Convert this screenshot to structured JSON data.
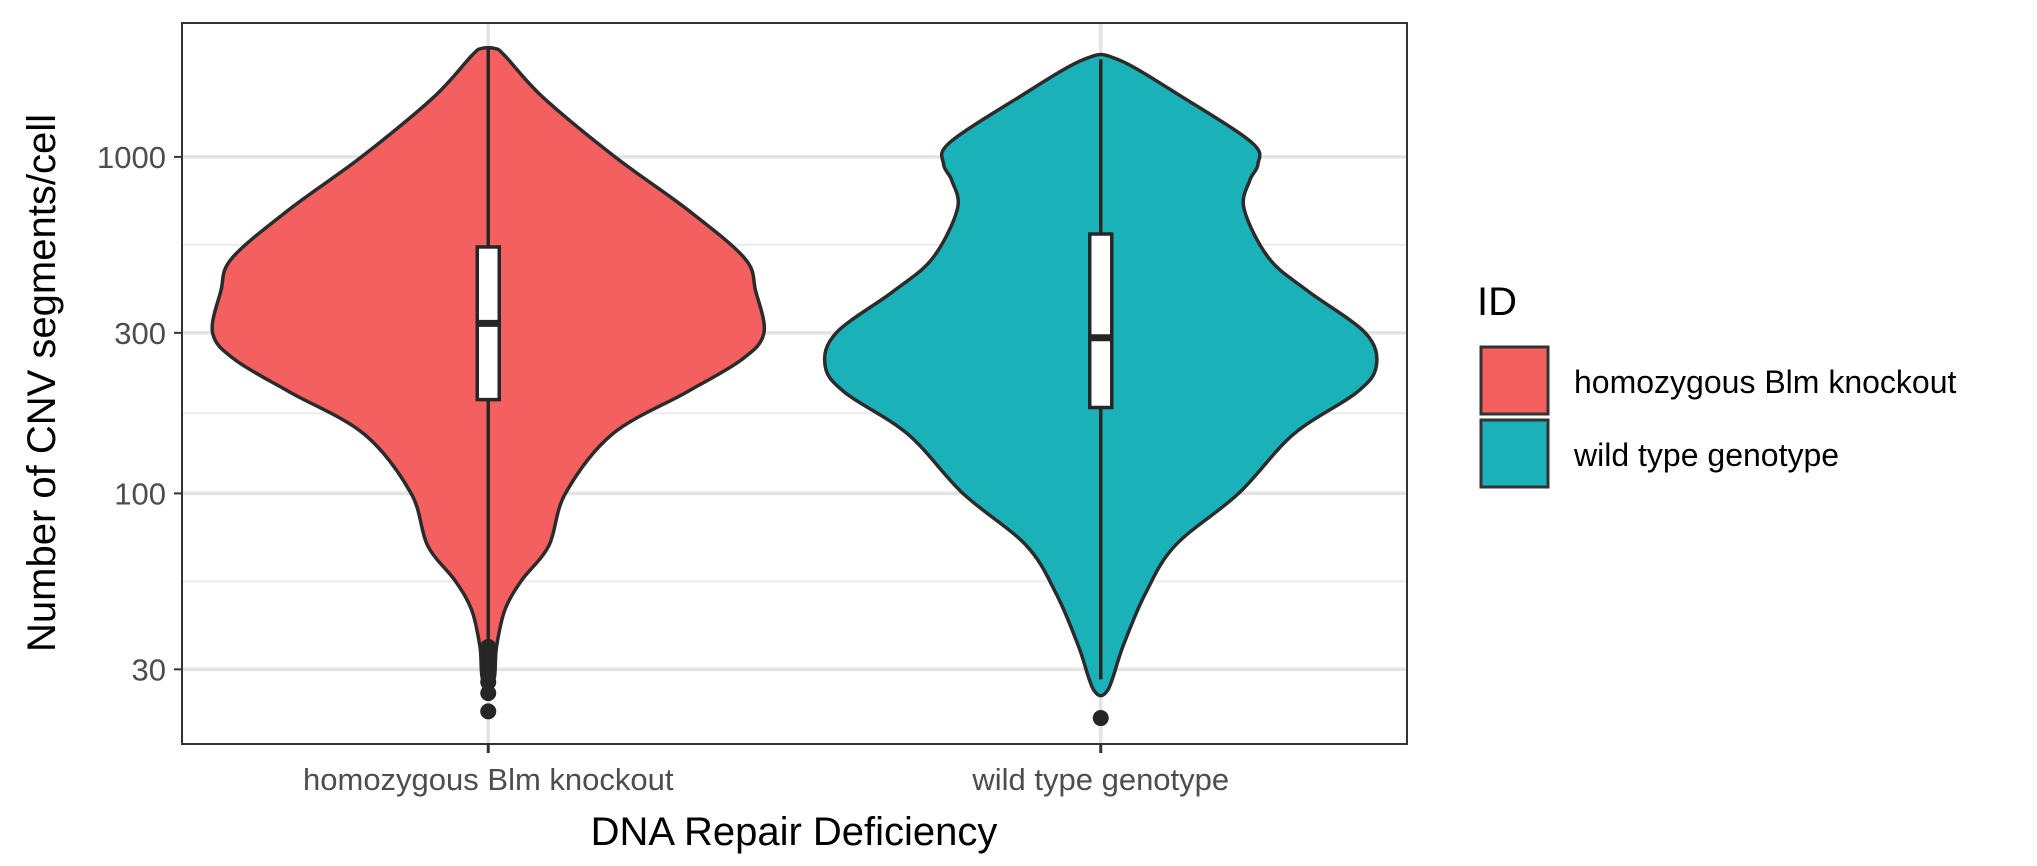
{
  "chart_data": {
    "type": "violin",
    "xlabel": "DNA Repair Deficiency",
    "ylabel": "Number of CNV segments/cell",
    "y_scale": "log10",
    "ylim": [
      18,
      2500
    ],
    "y_ticks": [
      30,
      100,
      300,
      1000
    ],
    "y_tick_labels": [
      "30",
      "100",
      "300",
      "1000"
    ],
    "categories": [
      "homozygous Blm knockout",
      "wild type genotype"
    ],
    "grid": true,
    "legend": {
      "title": "ID",
      "position": "right",
      "entries": [
        {
          "label": "homozygous Blm knockout",
          "color": "#F3605F"
        },
        {
          "label": "wild type genotype",
          "color": "#1AB2B8"
        }
      ]
    },
    "series": [
      {
        "category": "homozygous Blm knockout",
        "color": "#F3605F",
        "density_profile": [
          {
            "y": 2100,
            "width": 0.025
          },
          {
            "y": 2000,
            "width": 0.06
          },
          {
            "y": 1500,
            "width": 0.2
          },
          {
            "y": 1000,
            "width": 0.46
          },
          {
            "y": 700,
            "width": 0.72
          },
          {
            "y": 500,
            "width": 0.93
          },
          {
            "y": 400,
            "width": 0.97
          },
          {
            "y": 300,
            "width": 1.0
          },
          {
            "y": 250,
            "width": 0.92
          },
          {
            "y": 200,
            "width": 0.72
          },
          {
            "y": 150,
            "width": 0.45
          },
          {
            "y": 100,
            "width": 0.28
          },
          {
            "y": 70,
            "width": 0.22
          },
          {
            "y": 55,
            "width": 0.12
          },
          {
            "y": 45,
            "width": 0.06
          },
          {
            "y": 35,
            "width": 0.03
          },
          {
            "y": 28,
            "width": 0.02
          }
        ],
        "box": {
          "q1": 190,
          "median": 320,
          "q3": 540,
          "whisker_low": 36,
          "whisker_high": 2100
        },
        "outliers": [
          35,
          33,
          31,
          29,
          27.5,
          25.5,
          22.5
        ]
      },
      {
        "category": "wild type genotype",
        "color": "#1AB2B8",
        "density_profile": [
          {
            "y": 1950,
            "width": 0.06
          },
          {
            "y": 1500,
            "width": 0.3
          },
          {
            "y": 1100,
            "width": 0.55
          },
          {
            "y": 950,
            "width": 0.57
          },
          {
            "y": 850,
            "width": 0.54
          },
          {
            "y": 700,
            "width": 0.52
          },
          {
            "y": 500,
            "width": 0.61
          },
          {
            "y": 400,
            "width": 0.75
          },
          {
            "y": 300,
            "width": 0.96
          },
          {
            "y": 240,
            "width": 1.0
          },
          {
            "y": 200,
            "width": 0.93
          },
          {
            "y": 150,
            "width": 0.7
          },
          {
            "y": 100,
            "width": 0.5
          },
          {
            "y": 70,
            "width": 0.27
          },
          {
            "y": 50,
            "width": 0.16
          },
          {
            "y": 35,
            "width": 0.08
          },
          {
            "y": 26,
            "width": 0.025
          }
        ],
        "box": {
          "q1": 180,
          "median": 290,
          "q3": 590,
          "whisker_low": 28,
          "whisker_high": 1950
        },
        "outliers": [
          21.5
        ]
      }
    ]
  }
}
